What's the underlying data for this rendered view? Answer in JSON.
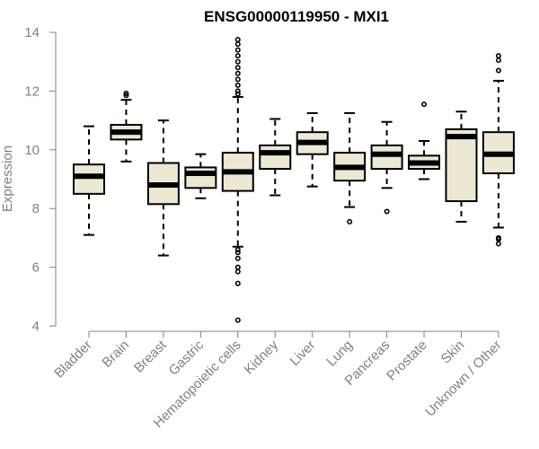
{
  "chart_data": {
    "type": "boxplot",
    "title": "ENSG00000119950 - MXI1",
    "xlabel": "",
    "ylabel": "Expression",
    "ylim": [
      4,
      14
    ],
    "yticks": [
      4,
      6,
      8,
      10,
      12,
      14
    ],
    "box_fill": "#ede8d2",
    "box_stroke": "#000000",
    "axis_color": "#808080",
    "categories": [
      "Bladder",
      "Brain",
      "Breast",
      "Gastric",
      "Hematopoietic cells",
      "Kidney",
      "Liver",
      "Lung",
      "Pancreas",
      "Prostate",
      "Skin",
      "Unknown / Other"
    ],
    "boxes": [
      {
        "category": "Bladder",
        "whisker_low": 7.1,
        "q1": 8.5,
        "median": 9.1,
        "q3": 9.5,
        "whisker_high": 10.8,
        "outliers": []
      },
      {
        "category": "Brain",
        "whisker_low": 9.6,
        "q1": 10.35,
        "median": 10.6,
        "q3": 10.85,
        "whisker_high": 11.7,
        "outliers": [
          11.85,
          11.92
        ]
      },
      {
        "category": "Breast",
        "whisker_low": 6.4,
        "q1": 8.15,
        "median": 8.8,
        "q3": 9.55,
        "whisker_high": 11.0,
        "outliers": []
      },
      {
        "category": "Gastric",
        "whisker_low": 8.35,
        "q1": 8.7,
        "median": 9.2,
        "q3": 9.4,
        "whisker_high": 9.85,
        "outliers": []
      },
      {
        "category": "Hematopoietic cells",
        "whisker_low": 6.7,
        "q1": 8.6,
        "median": 9.25,
        "q3": 9.9,
        "whisker_high": 11.8,
        "outliers": [
          4.2,
          5.45,
          5.85,
          6.0,
          6.3,
          6.5,
          6.6,
          11.9,
          12.0,
          12.2,
          12.4,
          12.6,
          12.8,
          13.0,
          13.2,
          13.4,
          13.6,
          13.75
        ]
      },
      {
        "category": "Kidney",
        "whisker_low": 8.45,
        "q1": 9.35,
        "median": 9.9,
        "q3": 10.15,
        "whisker_high": 11.05,
        "outliers": []
      },
      {
        "category": "Liver",
        "whisker_low": 8.75,
        "q1": 9.85,
        "median": 10.25,
        "q3": 10.6,
        "whisker_high": 11.25,
        "outliers": []
      },
      {
        "category": "Lung",
        "whisker_low": 8.05,
        "q1": 8.95,
        "median": 9.4,
        "q3": 9.9,
        "whisker_high": 11.25,
        "outliers": [
          7.55
        ]
      },
      {
        "category": "Pancreas",
        "whisker_low": 8.7,
        "q1": 9.35,
        "median": 9.85,
        "q3": 10.15,
        "whisker_high": 10.95,
        "outliers": [
          7.9
        ]
      },
      {
        "category": "Prostate",
        "whisker_low": 9.0,
        "q1": 9.35,
        "median": 9.55,
        "q3": 9.8,
        "whisker_high": 10.3,
        "outliers": [
          11.55
        ]
      },
      {
        "category": "Skin",
        "whisker_low": 7.55,
        "q1": 8.25,
        "median": 10.45,
        "q3": 10.7,
        "whisker_high": 11.3,
        "outliers": []
      },
      {
        "category": "Unknown / Other",
        "whisker_low": 7.35,
        "q1": 9.2,
        "median": 9.85,
        "q3": 10.6,
        "whisker_high": 12.35,
        "outliers": [
          6.8,
          6.95,
          7.0,
          12.7,
          13.05,
          13.2
        ]
      }
    ]
  }
}
